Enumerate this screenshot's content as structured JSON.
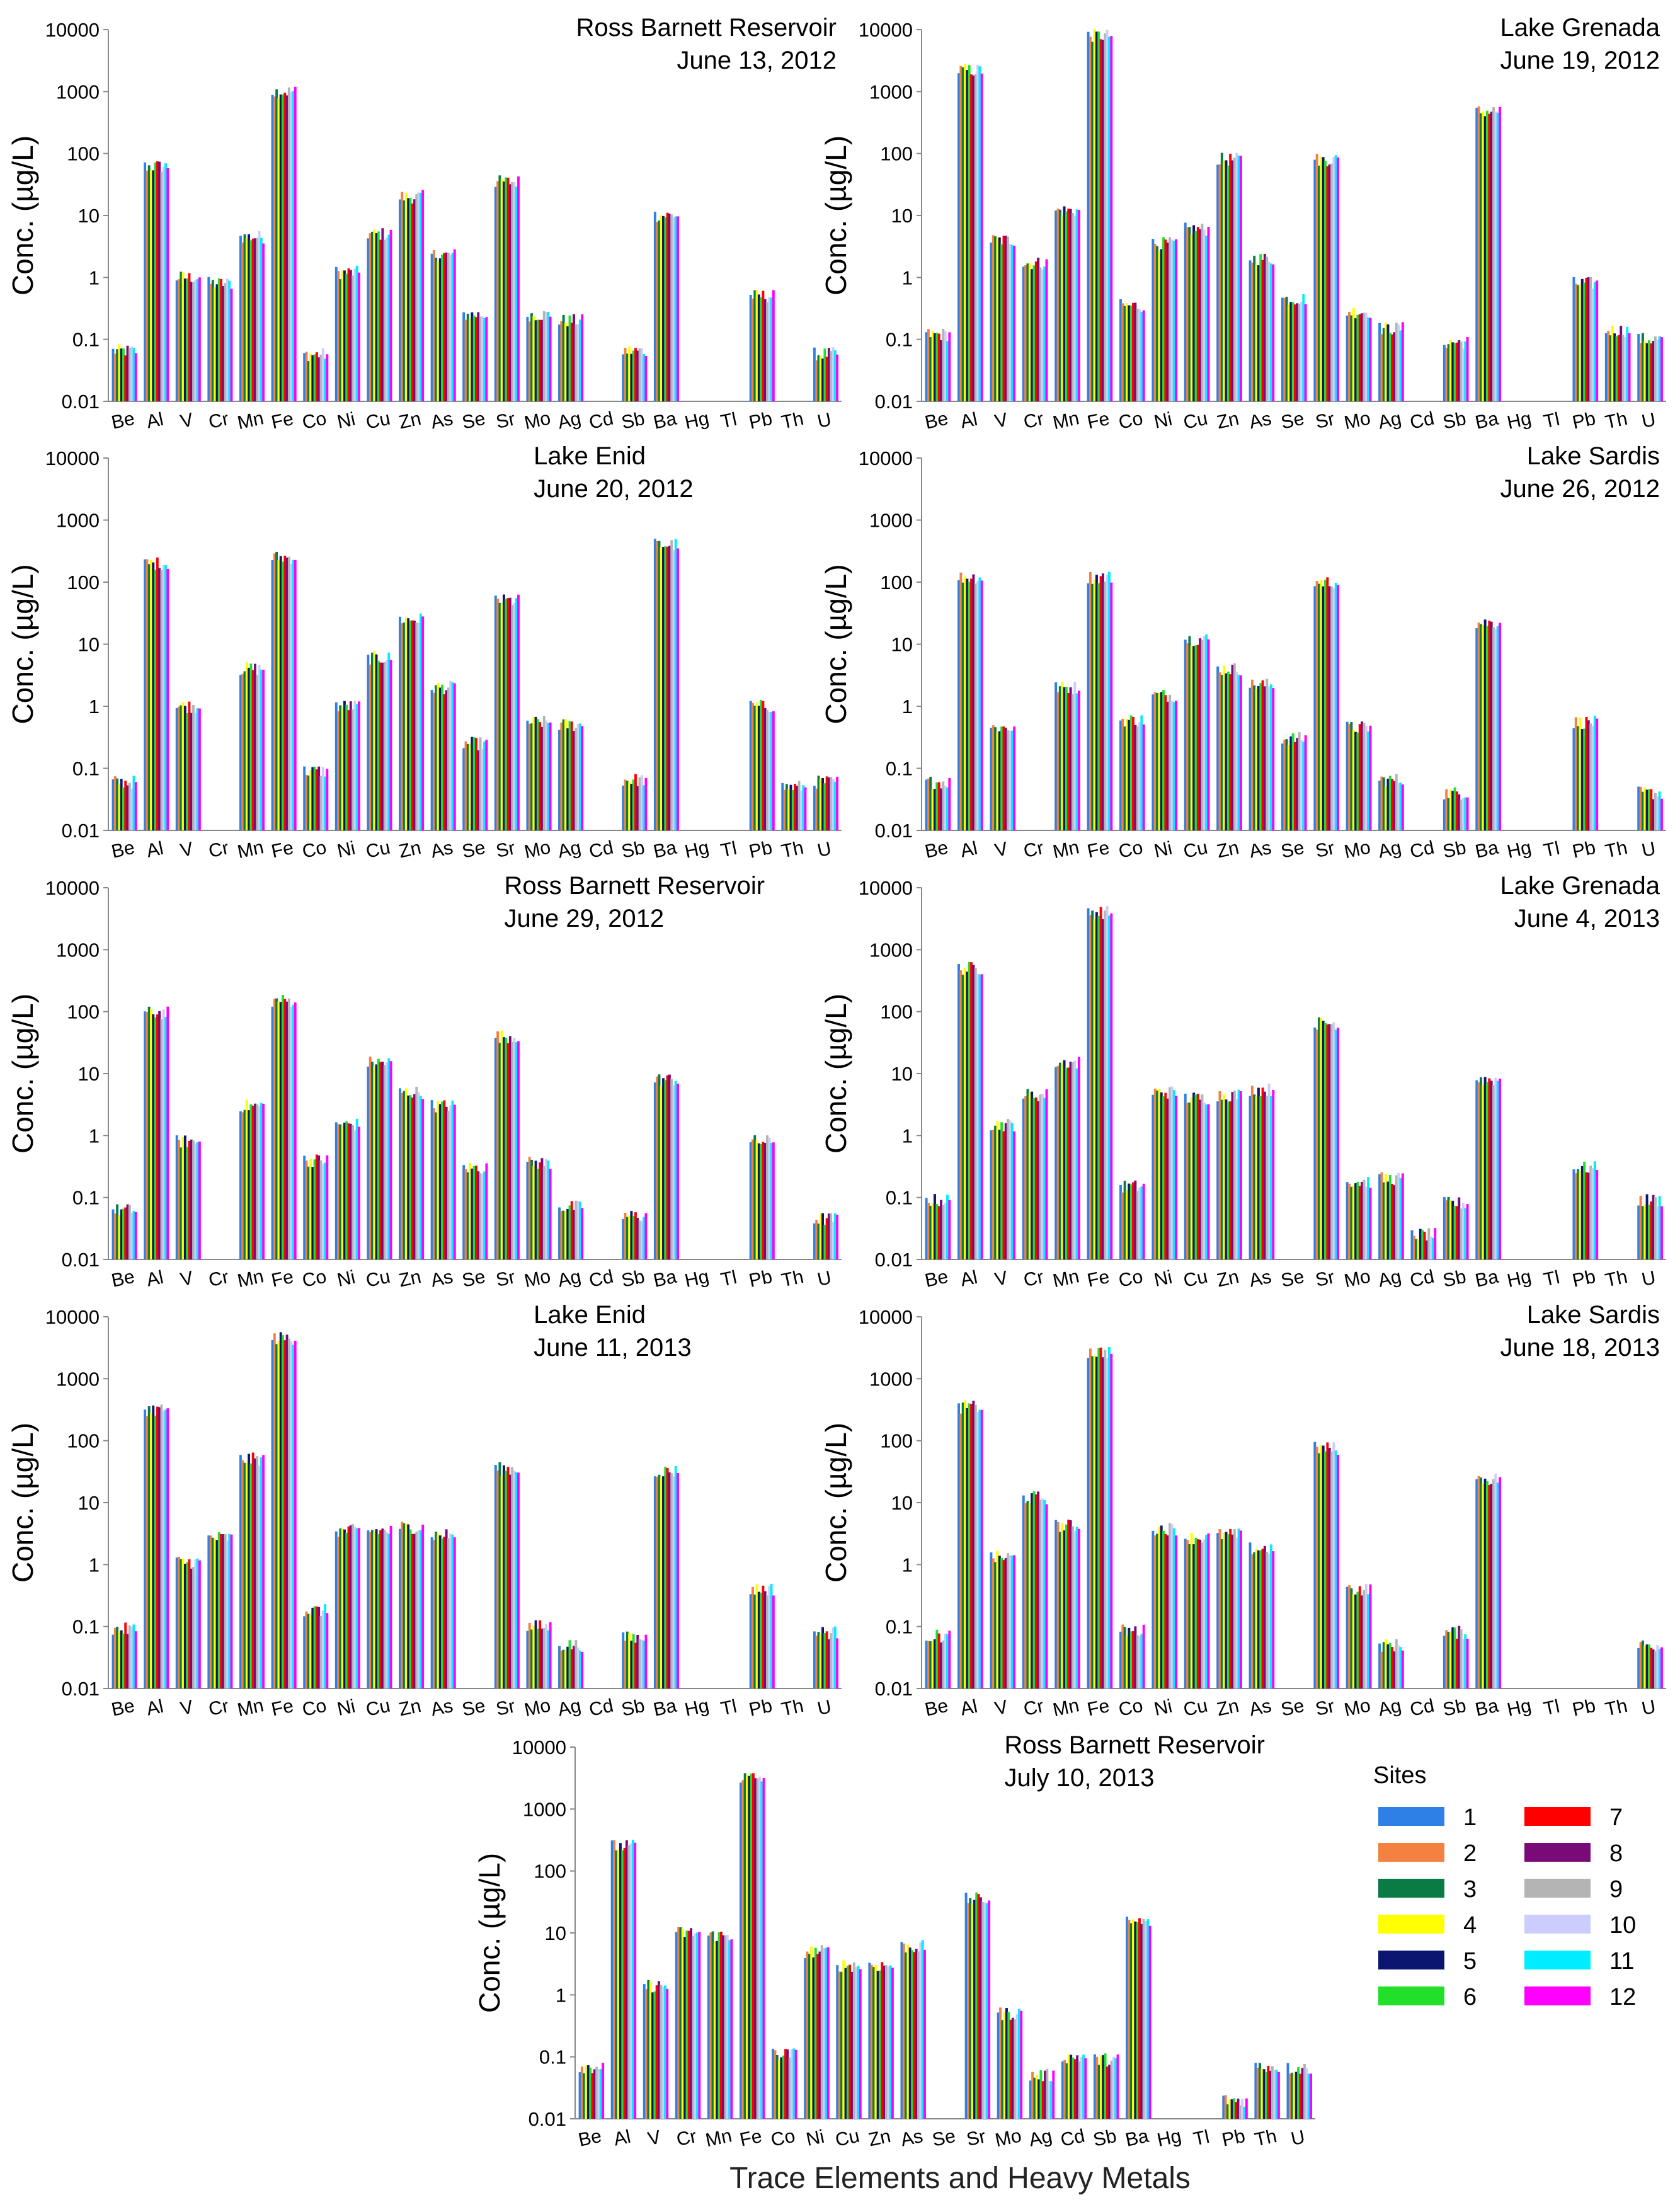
{
  "figure": {
    "y_axis_label": "Conc. (µg/L)",
    "x_axis_label": "Trace Elements and Heavy Metals",
    "y_ticks": [
      "10000",
      "1000",
      "100",
      "10",
      "1",
      "0.1",
      "0.01"
    ],
    "legend_title": "Sites",
    "site_colors": [
      "#2e7fe6",
      "#f4813f",
      "#0a7b45",
      "#ffff00",
      "#0b1670",
      "#22e02a",
      "#ff0000",
      "#7a0a78",
      "#b4b4b4",
      "#ccccff",
      "#00eeff",
      "#ff00ff"
    ]
  },
  "chart_data": [
    {
      "type": "bar",
      "title": "Ross Barnett Reservoir",
      "date": "June 13, 2012",
      "ylim": [
        0.01,
        10000
      ],
      "yscale": "log",
      "categories": [
        "Be",
        "Al",
        "V",
        "Cr",
        "Mn",
        "Fe",
        "Co",
        "Ni",
        "Cu",
        "Zn",
        "As",
        "Se",
        "Sr",
        "Mo",
        "Ag",
        "Cd",
        "Sb",
        "Ba",
        "Hg",
        "Tl",
        "Pb",
        "Th",
        "U"
      ],
      "values": [
        0.065,
        62,
        1.0,
        0.8,
        4.5,
        1000,
        0.057,
        1.2,
        5,
        20,
        2.3,
        0.25,
        35,
        0.25,
        0.2,
        null,
        0.065,
        10,
        null,
        null,
        0.5,
        null,
        0.058
      ]
    },
    {
      "type": "bar",
      "title": "Lake Grenada",
      "date": "June 19, 2012",
      "ylim": [
        0.01,
        10000
      ],
      "yscale": "log",
      "categories": [
        "Be",
        "Al",
        "V",
        "Cr",
        "Mn",
        "Fe",
        "Co",
        "Ni",
        "Cu",
        "Zn",
        "As",
        "Se",
        "Sr",
        "Mo",
        "Ag",
        "Cd",
        "Sb",
        "Ba",
        "Hg",
        "Tl",
        "Pb",
        "Th",
        "U"
      ],
      "values": [
        0.12,
        2200,
        4,
        1.7,
        12,
        8000,
        0.35,
        3.5,
        6,
        80,
        2,
        0.45,
        80,
        0.28,
        0.15,
        null,
        0.09,
        480,
        null,
        null,
        0.8,
        0.14,
        0.1
      ]
    },
    {
      "type": "bar",
      "title": "Lake Enid",
      "date": "June 20, 2012",
      "ylim": [
        0.01,
        10000
      ],
      "yscale": "log",
      "categories": [
        "Be",
        "Al",
        "V",
        "Cr",
        "Mn",
        "Fe",
        "Co",
        "Ni",
        "Cu",
        "Zn",
        "As",
        "Se",
        "Sr",
        "Mo",
        "Ag",
        "Cd",
        "Sb",
        "Ba",
        "Hg",
        "Tl",
        "Pb",
        "Th",
        "U"
      ],
      "values": [
        0.06,
        200,
        1.0,
        null,
        4,
        250,
        0.09,
        1.0,
        6,
        25,
        2.0,
        0.25,
        50,
        0.55,
        0.5,
        null,
        0.065,
        400,
        null,
        null,
        1.0,
        0.05,
        0.06
      ]
    },
    {
      "type": "bar",
      "title": "Lake Sardis",
      "date": "June 26, 2012",
      "ylim": [
        0.01,
        10000
      ],
      "yscale": "log",
      "categories": [
        "Be",
        "Al",
        "V",
        "Cr",
        "Mn",
        "Fe",
        "Co",
        "Ni",
        "Cu",
        "Zn",
        "As",
        "Se",
        "Sr",
        "Mo",
        "Ag",
        "Cd",
        "Sb",
        "Ba",
        "Hg",
        "Tl",
        "Pb",
        "Th",
        "U"
      ],
      "values": [
        0.06,
        120,
        0.45,
        null,
        2,
        120,
        0.6,
        1.5,
        12,
        4,
        2.2,
        0.3,
        100,
        0.45,
        0.065,
        null,
        0.04,
        22,
        null,
        null,
        0.55,
        null,
        0.04
      ]
    },
    {
      "type": "bar",
      "title": "Ross Barnett Reservoir",
      "date": "June 29, 2012",
      "ylim": [
        0.01,
        10000
      ],
      "yscale": "log",
      "categories": [
        "Be",
        "Al",
        "V",
        "Cr",
        "Mn",
        "Fe",
        "Co",
        "Ni",
        "Cu",
        "Zn",
        "As",
        "Se",
        "Sr",
        "Mo",
        "Ag",
        "Cd",
        "Sb",
        "Ba",
        "Hg",
        "Tl",
        "Pb",
        "Th",
        "U"
      ],
      "values": [
        0.062,
        95,
        0.8,
        null,
        3,
        150,
        0.4,
        1.5,
        15,
        5,
        3,
        0.3,
        40,
        0.36,
        0.07,
        null,
        0.05,
        8,
        null,
        null,
        0.8,
        null,
        0.045
      ]
    },
    {
      "type": "bar",
      "title": "Lake Grenada",
      "date": "June 4, 2013",
      "ylim": [
        0.01,
        10000
      ],
      "yscale": "log",
      "categories": [
        "Be",
        "Al",
        "V",
        "Cr",
        "Mn",
        "Fe",
        "Co",
        "Ni",
        "Cu",
        "Zn",
        "As",
        "Se",
        "Sr",
        "Mo",
        "Ag",
        "Cd",
        "Sb",
        "Ba",
        "Hg",
        "Tl",
        "Pb",
        "Th",
        "U"
      ],
      "values": [
        0.09,
        500,
        1.5,
        4.5,
        15,
        4000,
        0.15,
        5,
        4,
        4.5,
        5.5,
        null,
        65,
        0.18,
        0.2,
        0.025,
        0.08,
        8,
        null,
        null,
        0.3,
        null,
        0.09
      ]
    },
    {
      "type": "bar",
      "title": "Lake Enid",
      "date": "June 11, 2013",
      "ylim": [
        0.01,
        10000
      ],
      "yscale": "log",
      "categories": [
        "Be",
        "Al",
        "V",
        "Cr",
        "Mn",
        "Fe",
        "Co",
        "Ni",
        "Cu",
        "Zn",
        "As",
        "Se",
        "Sr",
        "Mo",
        "Ag",
        "Cd",
        "Sb",
        "Ba",
        "Hg",
        "Tl",
        "Pb",
        "Th",
        "U"
      ],
      "values": [
        0.09,
        320,
        1.1,
        2.7,
        50,
        4500,
        0.18,
        3.5,
        3.5,
        4,
        3,
        null,
        35,
        0.1,
        0.05,
        null,
        0.065,
        32,
        null,
        null,
        0.4,
        null,
        0.08
      ]
    },
    {
      "type": "bar",
      "title": "Lake Sardis",
      "date": "June 18, 2013",
      "ylim": [
        0.01,
        10000
      ],
      "yscale": "log",
      "categories": [
        "Be",
        "Al",
        "V",
        "Cr",
        "Mn",
        "Fe",
        "Co",
        "Ni",
        "Cu",
        "Zn",
        "As",
        "Se",
        "Sr",
        "Mo",
        "Ag",
        "Cd",
        "Sb",
        "Ba",
        "Hg",
        "Tl",
        "Pb",
        "Th",
        "U"
      ],
      "values": [
        0.07,
        350,
        1.3,
        12,
        4.2,
        2700,
        0.085,
        3.8,
        2.7,
        3,
        1.8,
        null,
        75,
        0.4,
        0.05,
        null,
        0.08,
        24,
        null,
        null,
        null,
        null,
        0.05
      ]
    },
    {
      "type": "bar",
      "title": "Ross Barnett Reservoir",
      "date": "July 10, 2013",
      "ylim": [
        0.01,
        10000
      ],
      "yscale": "log",
      "categories": [
        "Be",
        "Al",
        "V",
        "Cr",
        "Mn",
        "Fe",
        "Co",
        "Ni",
        "Cu",
        "Zn",
        "As",
        "Se",
        "Sr",
        "Mo",
        "Ag",
        "Cd",
        "Sb",
        "Ba",
        "Hg",
        "Tl",
        "Pb",
        "Th",
        "U"
      ],
      "values": [
        0.07,
        250,
        1.4,
        10,
        9,
        3200,
        0.11,
        5,
        3,
        3,
        6,
        null,
        35,
        0.5,
        0.05,
        0.1,
        0.09,
        15,
        null,
        null,
        0.02,
        0.07,
        0.065
      ]
    }
  ]
}
